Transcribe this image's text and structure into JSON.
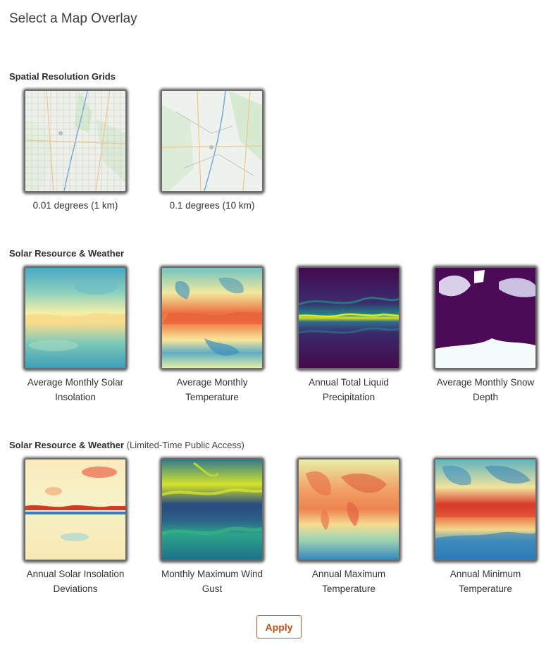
{
  "page": {
    "title": "Select a Map Overlay"
  },
  "sections": [
    {
      "heading": "Spatial Resolution Grids",
      "note": "",
      "options": [
        {
          "label": "0.01 degrees (1 km)",
          "icon": "map-grid-fine-thumbnail",
          "selected": false
        },
        {
          "label": "0.1 degrees (10 km)",
          "icon": "map-grid-coarse-thumbnail",
          "selected": false
        }
      ]
    },
    {
      "heading": "Solar Resource & Weather",
      "note": "",
      "options": [
        {
          "label": "Average Monthly Solar Insolation",
          "icon": "solar-insolation-thumbnail"
        },
        {
          "label": "Average Monthly Temperature",
          "icon": "temperature-thumbnail"
        },
        {
          "label": "Annual Total Liquid Precipitation",
          "icon": "precipitation-thumbnail"
        },
        {
          "label": "Average Monthly Snow Depth",
          "icon": "snow-depth-thumbnail"
        }
      ]
    },
    {
      "heading": "Solar Resource & Weather",
      "note": "(Limited-Time Public Access)",
      "options": [
        {
          "label": "Annual Solar Insolation Deviations",
          "icon": "insolation-deviation-thumbnail"
        },
        {
          "label": "Monthly Maximum Wind Gust",
          "icon": "wind-gust-thumbnail"
        },
        {
          "label": "Annual Maximum Temperature",
          "icon": "max-temperature-thumbnail"
        },
        {
          "label": "Annual Minimum Temperature",
          "icon": "min-temperature-thumbnail"
        }
      ]
    }
  ],
  "actions": {
    "apply_label": "Apply"
  },
  "colors": {
    "accent": "#c0551f",
    "heading": "#2e2e2e",
    "thumb_border": "#6b6b6b"
  }
}
